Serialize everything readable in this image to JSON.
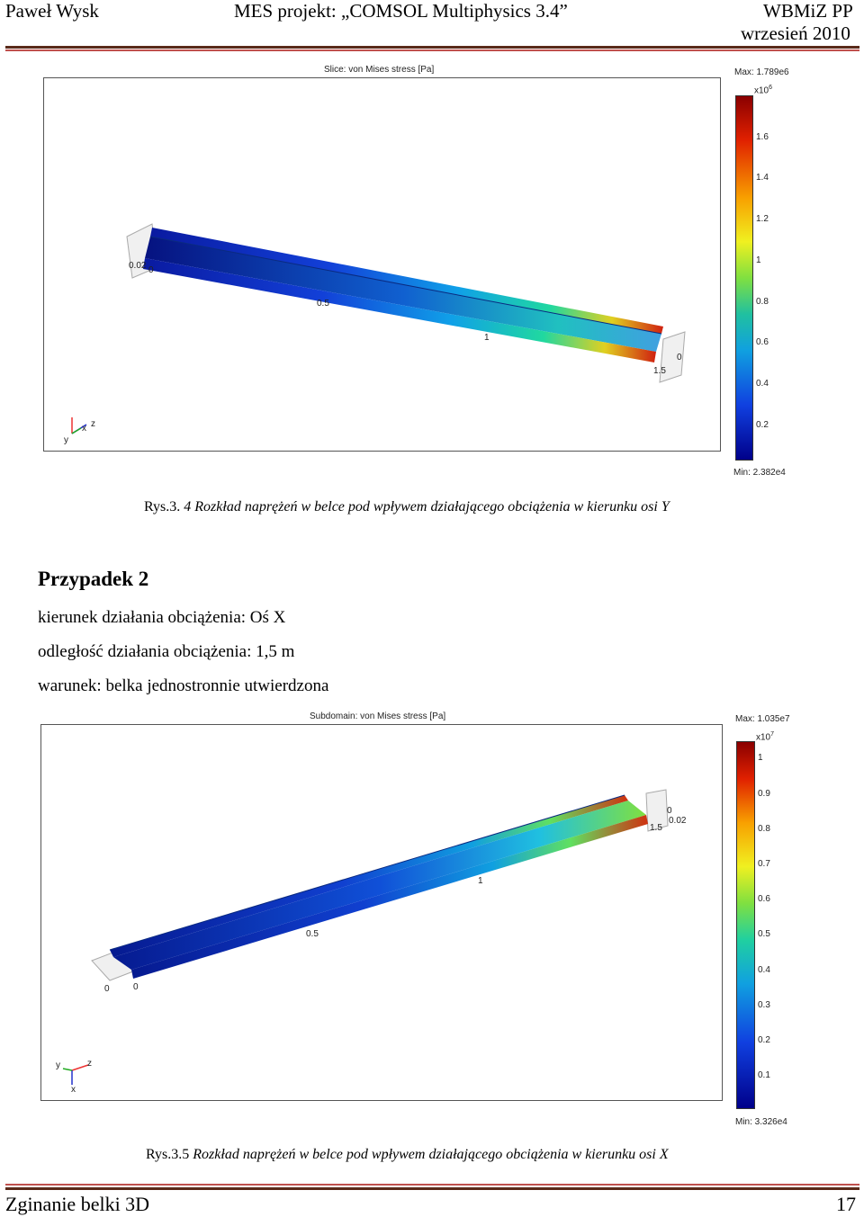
{
  "header": {
    "author": "Paweł Wysk",
    "project": "MES projekt: „COMSOL Multiphysics 3.4”",
    "institution": "WBMiZ PP",
    "date": "wrzesień 2010"
  },
  "figure1": {
    "title": "Slice: von Mises stress [Pa]",
    "max": "Max: 1.789e6",
    "exp": "x10",
    "exp_sup": "6",
    "min": "Min: 2.382e4",
    "ticks": [
      "1.6",
      "1.4",
      "1.2",
      "1",
      "0.8",
      "0.6",
      "0.4",
      "0.2"
    ],
    "axis_labels": [
      "0.02",
      "0",
      "0.5",
      "1",
      "1.5",
      "0"
    ],
    "triad": {
      "y": "y",
      "x": "x",
      "z": "z"
    },
    "caption_prefix": "Rys.3.",
    "caption_text": " 4 Rozkład naprężeń w belce pod wpływem działającego obciążenia w kierunku osi Y"
  },
  "section": {
    "heading": "Przypadek 2",
    "line1": "kierunek działania obciążenia: Oś X",
    "line2": "odległość działania obciążenia: 1,5 m",
    "line3": "warunek: belka jednostronnie utwierdzona"
  },
  "figure2": {
    "title": "Subdomain: von Mises stress [Pa]",
    "max": "Max: 1.035e7",
    "exp": "x10",
    "exp_sup": "7",
    "min": "Min: 3.326e4",
    "ticks": [
      "1",
      "0.9",
      "0.8",
      "0.7",
      "0.6",
      "0.5",
      "0.4",
      "0.3",
      "0.2",
      "0.1"
    ],
    "axis_labels": [
      "0",
      "0.02",
      "1.5",
      "1",
      "0.5",
      "0",
      "0"
    ],
    "triad": {
      "y": "y",
      "z": "z",
      "x": "x"
    },
    "caption_prefix": "Rys.3.5",
    "caption_text": " Rozkład naprężeń w belce pod wpływem działającego obciążenia w kierunku osi X"
  },
  "footer": {
    "title": "Zginanie belki 3D",
    "page": "17"
  }
}
